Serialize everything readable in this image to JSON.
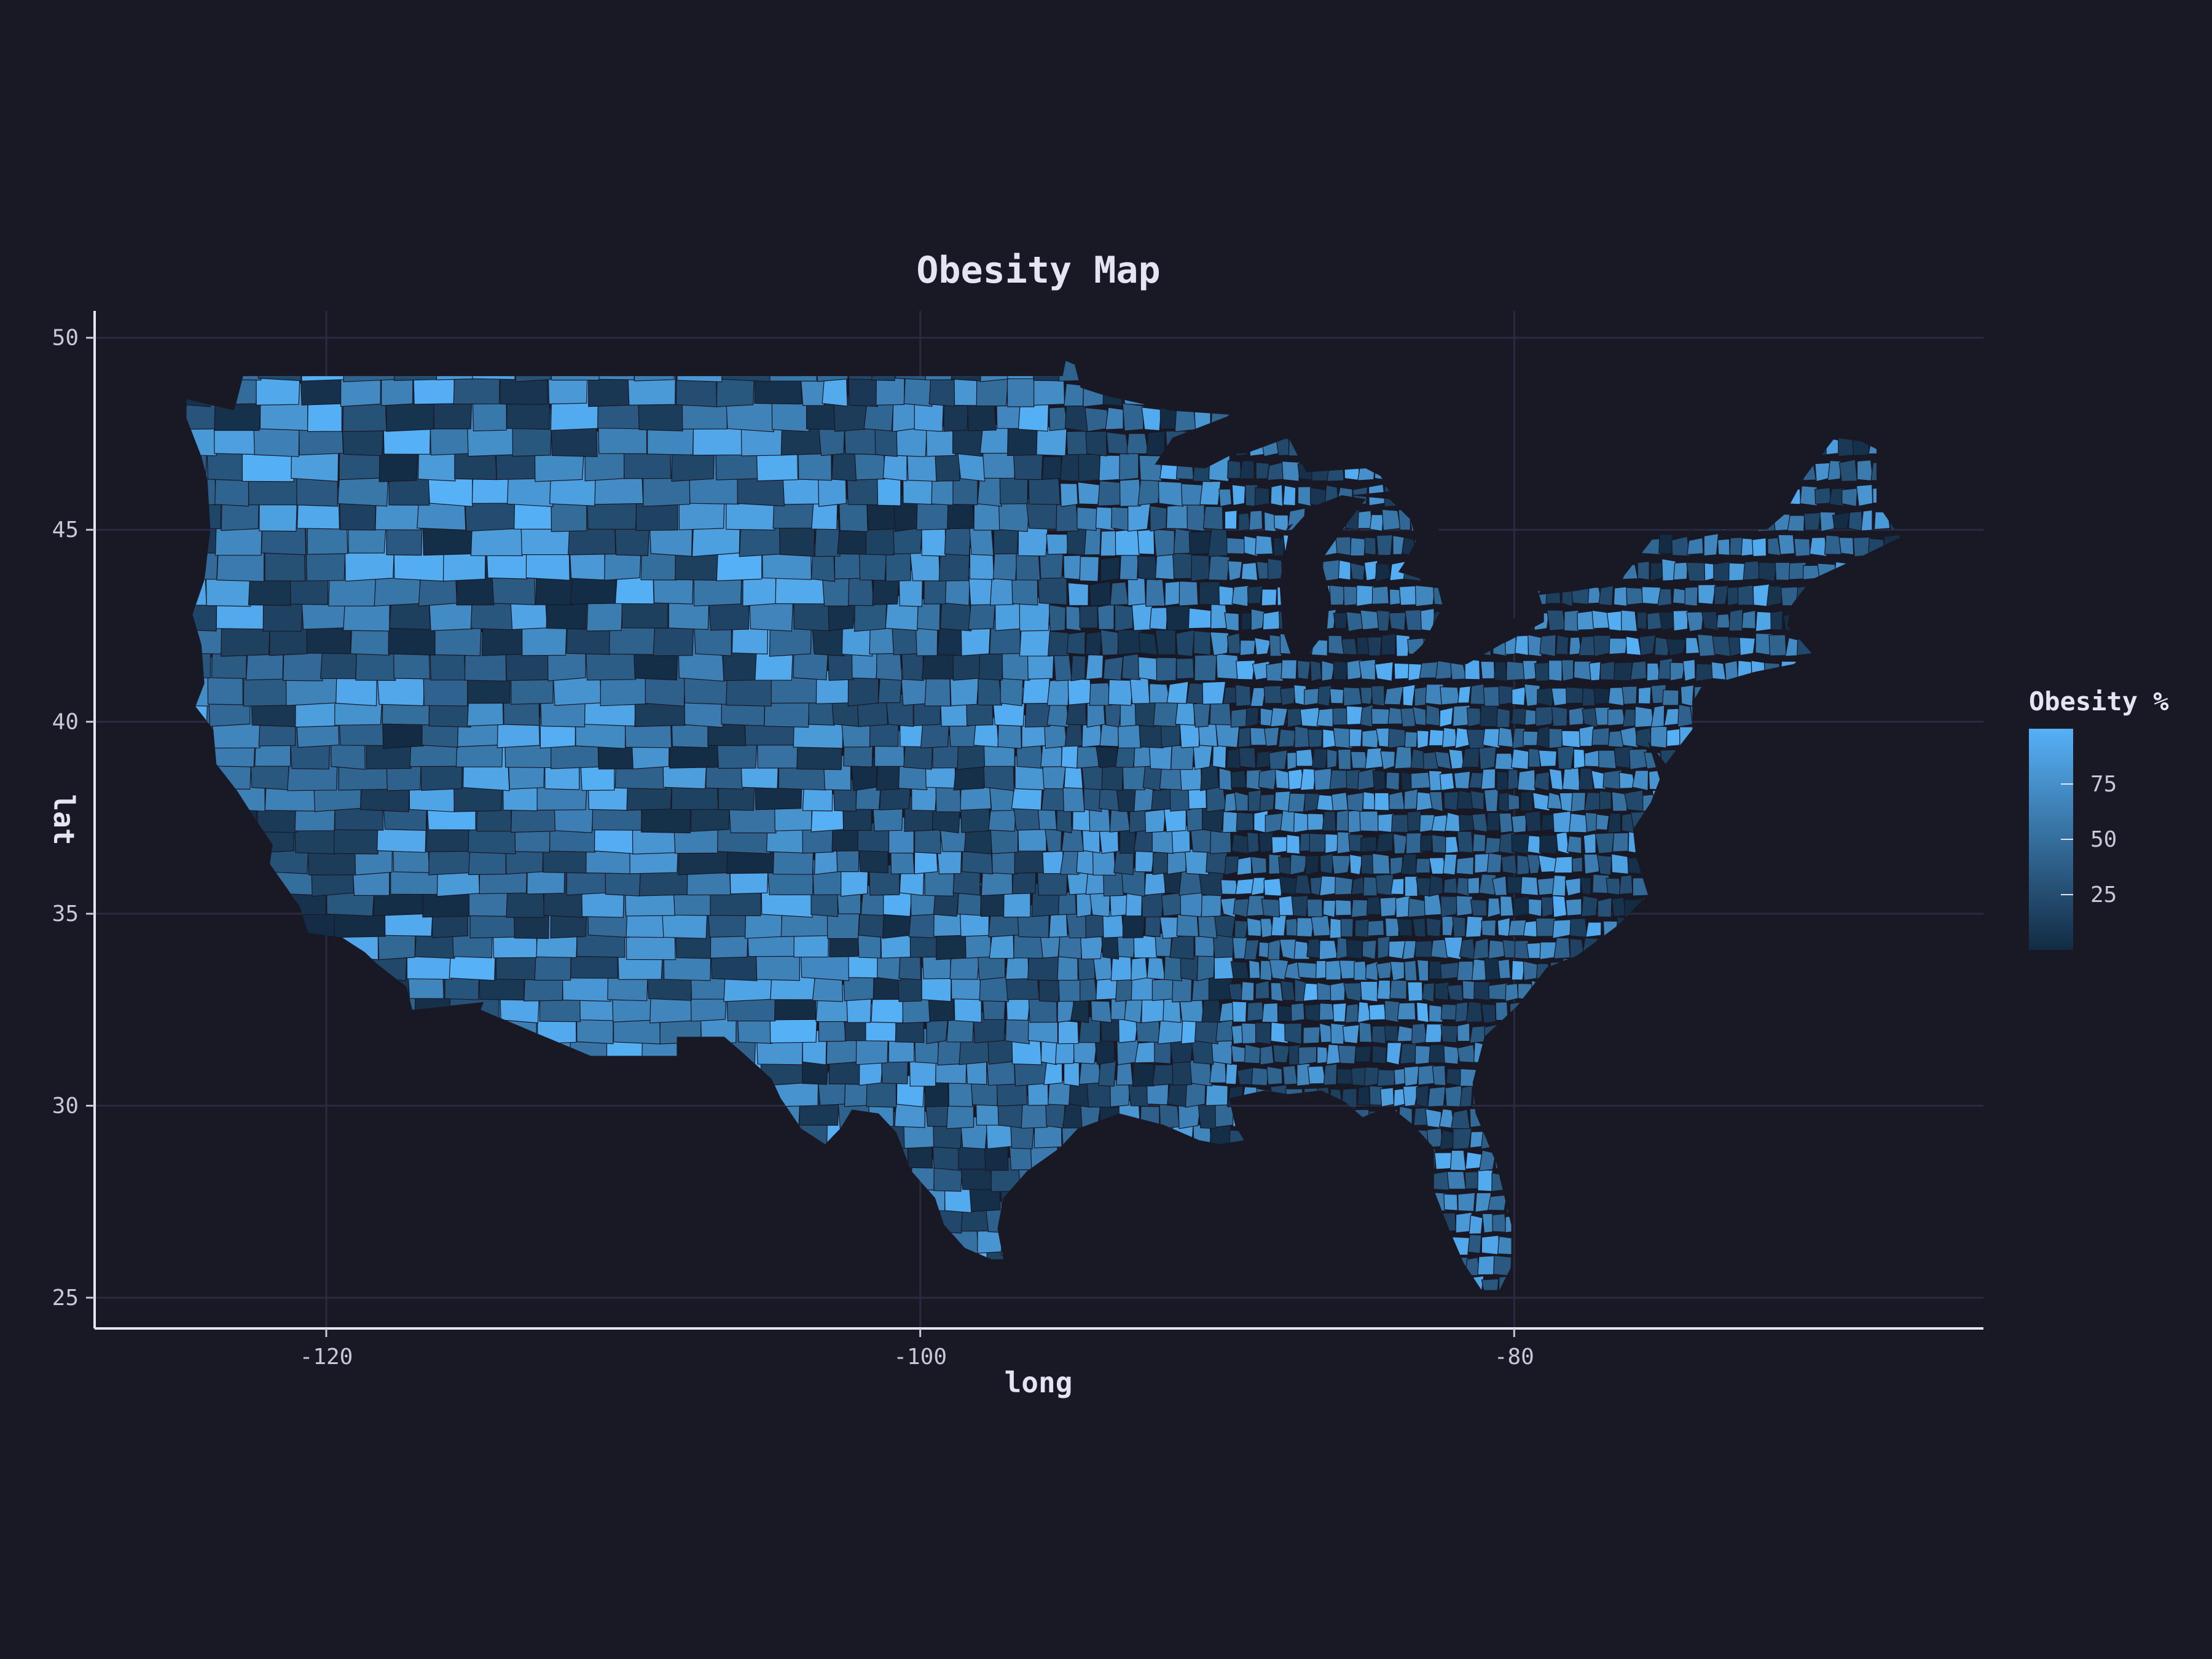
{
  "chart_data": {
    "type": "heatmap",
    "title": "Obesity Map",
    "xlabel": "long",
    "ylabel": "lat",
    "xlim": [
      -127.8,
      -64.2
    ],
    "ylim": [
      24.2,
      50.7
    ],
    "x_ticks": [
      -120,
      -100,
      -80
    ],
    "x_tick_labels": [
      "-120",
      "-100",
      "-80"
    ],
    "y_ticks": [
      25,
      30,
      35,
      40,
      45,
      50
    ],
    "y_tick_labels": [
      "25",
      "30",
      "35",
      "40",
      "45",
      "50"
    ],
    "grid": true,
    "legend": {
      "title": "Obesity %",
      "placement": "right",
      "breaks": [
        25,
        50,
        75
      ],
      "break_labels": [
        "25",
        "50",
        "75"
      ],
      "range": [
        0,
        100
      ]
    },
    "color_low": "#132b43",
    "color_high": "#56b1f7",
    "region": "contiguous United States counties",
    "values_note": "county values appear randomly distributed across 0-100"
  },
  "colors": {
    "background": "#191825",
    "panel": "#191825",
    "grid": "#2c2a40",
    "axis": "#e6e3f2",
    "text": "#e6e3f2"
  }
}
